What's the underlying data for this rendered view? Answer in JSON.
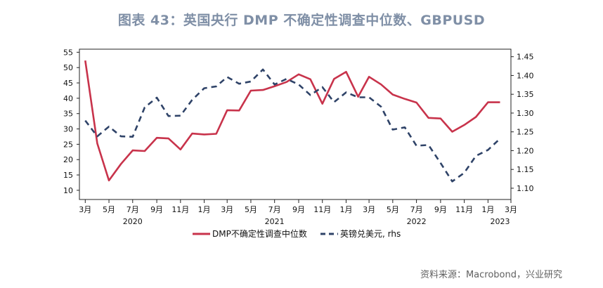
{
  "title": "图表 43：英国央行 DMP 不确定性调查中位数、GBPUSD",
  "source": "资料来源：Macrobond，兴业研究",
  "colors": {
    "uncertainty": "#c8334b",
    "gbpusd": "#2f4368",
    "title": "#7f8fa6"
  },
  "chart_data": {
    "type": "line",
    "title": "图表 43：英国央行 DMP 不确定性调查中位数、GBPUSD",
    "x_axis": {
      "range": [
        "2020-02-15",
        "2023-03-01"
      ],
      "tick_labels": [
        "3月",
        "5月",
        "7月",
        "9月",
        "11月",
        "1月",
        "3月",
        "5月",
        "7月",
        "9月",
        "11月",
        "1月",
        "3月",
        "5月",
        "7月",
        "9月",
        "11月",
        "1月",
        "3月"
      ],
      "tick_dates": [
        "2020-03-01",
        "2020-05-01",
        "2020-07-01",
        "2020-09-01",
        "2020-11-01",
        "2021-01-01",
        "2021-03-01",
        "2021-05-01",
        "2021-07-01",
        "2021-09-01",
        "2021-11-01",
        "2022-01-01",
        "2022-03-01",
        "2022-05-01",
        "2022-07-01",
        "2022-09-01",
        "2022-11-01",
        "2023-01-01",
        "2023-03-01"
      ],
      "year_labels": [
        "2020",
        "2021",
        "2022",
        "2023"
      ],
      "year_label_dates": [
        "2020-07-01",
        "2021-07-01",
        "2022-07-01",
        "2023-02-01"
      ]
    },
    "y_left": {
      "range": [
        7,
        56
      ],
      "ticks": [
        10,
        15,
        20,
        25,
        30,
        35,
        40,
        45,
        50,
        55
      ]
    },
    "y_right": {
      "range": [
        1.07,
        1.47
      ],
      "ticks": [
        "1.10",
        "1.15",
        "1.20",
        "1.25",
        "1.30",
        "1.35",
        "1.40",
        "1.45"
      ]
    },
    "legend_position": "bottom",
    "grid": false,
    "series": [
      {
        "name": "DMP不确定性调查中位数",
        "axis": "left",
        "style": "solid",
        "points": [
          [
            "2020-03-01",
            52.3
          ],
          [
            "2020-04-01",
            25.3
          ],
          [
            "2020-05-01",
            13.2
          ],
          [
            "2020-06-01",
            18.6
          ],
          [
            "2020-07-01",
            23.0
          ],
          [
            "2020-08-01",
            22.8
          ],
          [
            "2020-09-01",
            27.1
          ],
          [
            "2020-10-01",
            26.9
          ],
          [
            "2020-11-01",
            23.3
          ],
          [
            "2020-12-01",
            28.5
          ],
          [
            "2021-01-01",
            28.2
          ],
          [
            "2021-02-01",
            28.4
          ],
          [
            "2021-03-01",
            36.1
          ],
          [
            "2021-04-01",
            36.0
          ],
          [
            "2021-05-01",
            42.5
          ],
          [
            "2021-06-01",
            42.7
          ],
          [
            "2021-07-01",
            43.9
          ],
          [
            "2021-08-01",
            45.3
          ],
          [
            "2021-09-01",
            47.8
          ],
          [
            "2021-10-01",
            46.2
          ],
          [
            "2021-11-01",
            38.2
          ],
          [
            "2021-12-01",
            46.3
          ],
          [
            "2022-01-01",
            48.6
          ],
          [
            "2022-02-01",
            40.5
          ],
          [
            "2022-03-01",
            47.0
          ],
          [
            "2022-04-01",
            44.5
          ],
          [
            "2022-05-01",
            41.2
          ],
          [
            "2022-06-01",
            39.8
          ],
          [
            "2022-07-01",
            38.6
          ],
          [
            "2022-08-01",
            33.6
          ],
          [
            "2022-09-01",
            33.4
          ],
          [
            "2022-10-01",
            29.1
          ],
          [
            "2022-11-01",
            31.3
          ],
          [
            "2022-12-01",
            33.9
          ],
          [
            "2023-01-01",
            38.7
          ],
          [
            "2023-02-01",
            38.7
          ]
        ]
      },
      {
        "name": "英镑兑美元, rhs",
        "axis": "right",
        "style": "dashed",
        "points": [
          [
            "2020-03-01",
            1.28
          ],
          [
            "2020-04-01",
            1.238
          ],
          [
            "2020-05-01",
            1.264
          ],
          [
            "2020-06-01",
            1.238
          ],
          [
            "2020-07-01",
            1.237
          ],
          [
            "2020-08-01",
            1.315
          ],
          [
            "2020-09-01",
            1.341
          ],
          [
            "2020-10-01",
            1.292
          ],
          [
            "2020-11-01",
            1.293
          ],
          [
            "2020-12-01",
            1.335
          ],
          [
            "2021-01-01",
            1.366
          ],
          [
            "2021-02-01",
            1.371
          ],
          [
            "2021-03-01",
            1.396
          ],
          [
            "2021-04-01",
            1.378
          ],
          [
            "2021-05-01",
            1.384
          ],
          [
            "2021-06-01",
            1.416
          ],
          [
            "2021-07-01",
            1.376
          ],
          [
            "2021-08-01",
            1.391
          ],
          [
            "2021-09-01",
            1.376
          ],
          [
            "2021-10-01",
            1.348
          ],
          [
            "2021-11-01",
            1.369
          ],
          [
            "2021-12-01",
            1.329
          ],
          [
            "2022-01-01",
            1.355
          ],
          [
            "2022-02-01",
            1.342
          ],
          [
            "2022-03-01",
            1.342
          ],
          [
            "2022-04-01",
            1.317
          ],
          [
            "2022-05-01",
            1.256
          ],
          [
            "2022-06-01",
            1.262
          ],
          [
            "2022-07-01",
            1.213
          ],
          [
            "2022-08-01",
            1.215
          ],
          [
            "2022-09-01",
            1.167
          ],
          [
            "2022-10-01",
            1.118
          ],
          [
            "2022-11-01",
            1.141
          ],
          [
            "2022-12-01",
            1.186
          ],
          [
            "2023-01-01",
            1.202
          ],
          [
            "2023-02-01",
            1.232
          ]
        ]
      }
    ]
  }
}
